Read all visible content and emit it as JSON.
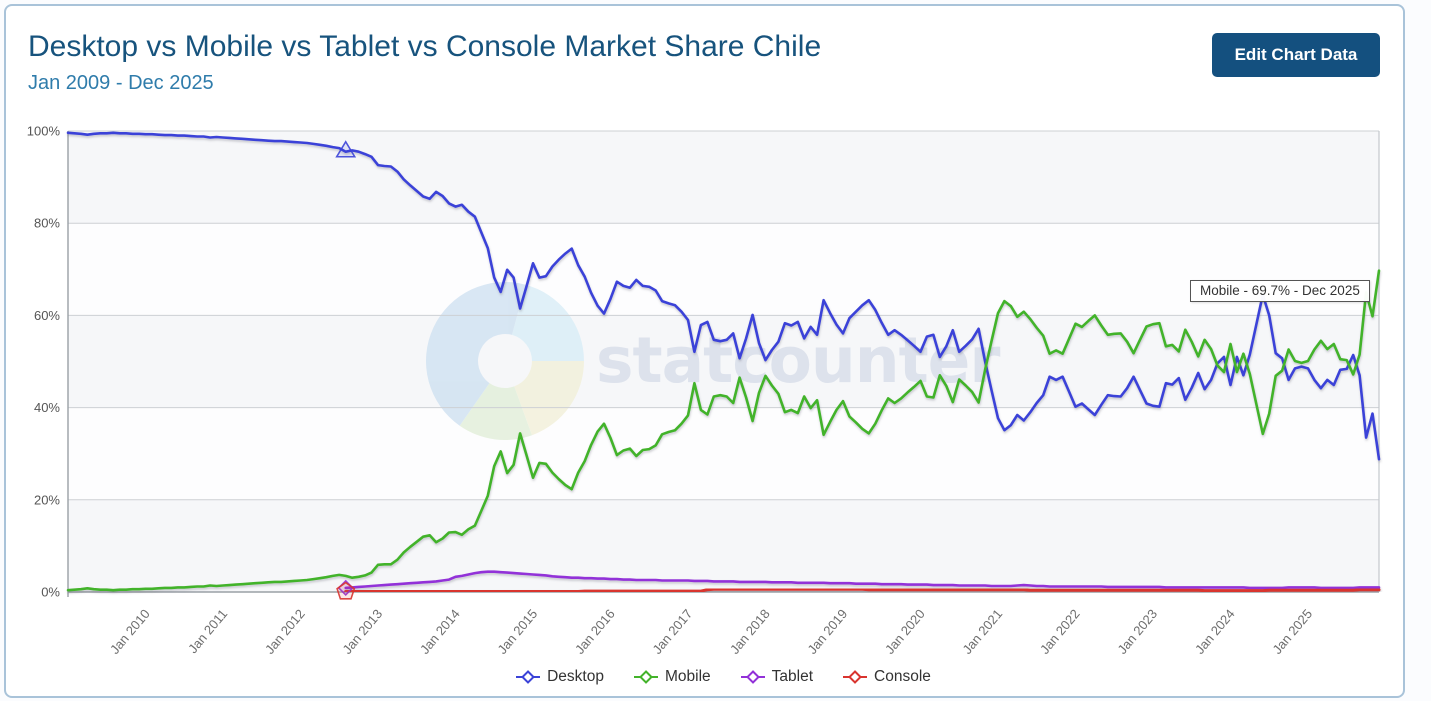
{
  "header": {
    "title": "Desktop vs Mobile vs Tablet vs Console Market Share Chile",
    "subtitle": "Jan 2009 - Dec 2025",
    "edit_button_label": "Edit Chart Data"
  },
  "tooltip": {
    "text": "Mobile - 69.7% - Dec 2025"
  },
  "watermark": {
    "text": "statcounter"
  },
  "legend": [
    {
      "label": "Desktop",
      "color": "#3b43d8"
    },
    {
      "label": "Mobile",
      "color": "#43b32a"
    },
    {
      "label": "Tablet",
      "color": "#9231d8"
    },
    {
      "label": "Console",
      "color": "#d9342f"
    }
  ],
  "chart_data": {
    "type": "line",
    "title": "Desktop vs Mobile vs Tablet vs Console Market Share Chile",
    "period": "Jan 2009 - Dec 2025",
    "x_start": "Jan 2009",
    "x_end": "Dec 2025",
    "points_are": "monthly market share percent",
    "x_tick_labels": [
      "Jan 2010",
      "Jan 2011",
      "Jan 2012",
      "Jan 2013",
      "Jan 2014",
      "Jan 2015",
      "Jan 2016",
      "Jan 2017",
      "Jan 2018",
      "Jan 2019",
      "Jan 2020",
      "Jan 2021",
      "Jan 2022",
      "Jan 2023",
      "Jan 2024",
      "Jan 2025"
    ],
    "x_tick_month_indices": [
      12,
      24,
      36,
      48,
      60,
      72,
      84,
      96,
      108,
      120,
      132,
      144,
      156,
      168,
      180,
      192
    ],
    "y_tick_labels": [
      "0%",
      "20%",
      "40%",
      "60%",
      "80%",
      "100%"
    ],
    "ylim": [
      0,
      100
    ],
    "grid": "horizontal",
    "legend_position": "bottom",
    "series": [
      {
        "name": "Desktop",
        "color": "#3b43d8",
        "values": [
          99.6,
          99.5,
          99.4,
          99.2,
          99.4,
          99.5,
          99.5,
          99.6,
          99.5,
          99.5,
          99.4,
          99.4,
          99.3,
          99.3,
          99.2,
          99.1,
          99.1,
          99.0,
          99.0,
          98.9,
          98.8,
          98.8,
          98.6,
          98.7,
          98.6,
          98.5,
          98.4,
          98.3,
          98.2,
          98.1,
          98.0,
          97.9,
          97.8,
          97.8,
          97.7,
          97.6,
          97.5,
          97.4,
          97.2,
          97.0,
          96.8,
          96.5,
          96.3,
          95.5,
          95.8,
          95.5,
          95.0,
          94.4,
          92.6,
          92.4,
          92.3,
          91.2,
          89.5,
          88.2,
          87.0,
          85.8,
          85.3,
          86.8,
          85.9,
          84.3,
          83.6,
          84.0,
          82.5,
          81.4,
          78.0,
          74.6,
          68.2,
          65.1,
          69.9,
          68.2,
          61.5,
          66.3,
          71.3,
          68.2,
          68.5,
          70.6,
          72.1,
          73.4,
          74.5,
          70.9,
          68.4,
          64.9,
          62.1,
          60.4,
          63.6,
          67.3,
          66.4,
          66.0,
          67.7,
          66.4,
          66.2,
          65.4,
          63.1,
          62.6,
          62.2,
          60.8,
          59.0,
          52.1,
          57.9,
          58.6,
          54.7,
          54.4,
          54.7,
          56.1,
          50.7,
          55.0,
          60.1,
          54.0,
          50.3,
          52.5,
          54.3,
          58.3,
          57.8,
          58.6,
          55.0,
          57.5,
          55.8,
          63.3,
          60.5,
          58.0,
          56.1,
          59.4,
          60.8,
          62.2,
          63.3,
          61.2,
          58.4,
          55.8,
          56.8,
          55.8,
          54.6,
          53.4,
          52.1,
          55.4,
          55.8,
          51.0,
          53.3,
          56.8,
          52.1,
          53.4,
          54.8,
          57.1,
          50.0,
          43.8,
          37.7,
          35.1,
          36.2,
          38.4,
          37.2,
          39.0,
          41.0,
          42.7,
          46.7,
          46.0,
          46.7,
          43.5,
          40.2,
          40.9,
          39.6,
          38.4,
          40.6,
          42.7,
          42.5,
          42.4,
          44.2,
          46.7,
          43.8,
          40.9,
          40.4,
          40.2,
          45.3,
          45.0,
          46.4,
          41.7,
          44.3,
          47.5,
          44.0,
          46.0,
          49.6,
          51.0,
          44.9,
          51.0,
          47.0,
          51.5,
          58.0,
          64.5,
          60.0,
          51.8,
          50.7,
          46.0,
          48.5,
          48.9,
          48.5,
          46.0,
          44.2,
          46.0,
          44.9,
          48.2,
          48.4,
          51.4,
          47.0,
          33.5,
          38.7,
          28.8
        ]
      },
      {
        "name": "Mobile",
        "color": "#43b32a",
        "values": [
          0.4,
          0.5,
          0.6,
          0.8,
          0.6,
          0.5,
          0.5,
          0.4,
          0.5,
          0.5,
          0.6,
          0.6,
          0.7,
          0.7,
          0.8,
          0.9,
          0.9,
          1.0,
          1.0,
          1.1,
          1.2,
          1.2,
          1.4,
          1.3,
          1.4,
          1.5,
          1.6,
          1.7,
          1.8,
          1.9,
          2.0,
          2.1,
          2.2,
          2.2,
          2.3,
          2.4,
          2.5,
          2.6,
          2.8,
          3.0,
          3.2,
          3.5,
          3.7,
          3.5,
          3.1,
          3.3,
          3.6,
          4.2,
          5.9,
          6.0,
          6.0,
          7.0,
          8.6,
          9.8,
          10.9,
          12.0,
          12.3,
          10.8,
          11.6,
          12.9,
          13.0,
          12.4,
          13.6,
          14.4,
          17.6,
          20.9,
          27.3,
          30.5,
          25.8,
          27.6,
          34.4,
          29.7,
          24.8,
          28.0,
          27.8,
          25.9,
          24.5,
          23.2,
          22.3,
          25.9,
          28.4,
          31.9,
          34.8,
          36.5,
          33.4,
          29.7,
          30.7,
          31.1,
          29.5,
          30.8,
          31.0,
          31.8,
          34.2,
          34.7,
          35.1,
          36.5,
          38.3,
          45.3,
          39.5,
          38.5,
          42.4,
          42.7,
          42.4,
          41.0,
          46.5,
          42.2,
          37.1,
          43.2,
          46.9,
          44.8,
          43.0,
          39.0,
          39.5,
          38.8,
          42.4,
          39.9,
          41.6,
          34.1,
          36.9,
          39.5,
          41.4,
          38.1,
          36.8,
          35.4,
          34.4,
          36.5,
          39.4,
          42.0,
          41.0,
          42.0,
          43.3,
          44.5,
          45.8,
          42.4,
          42.2,
          47.0,
          44.7,
          41.2,
          46.1,
          44.8,
          43.4,
          41.1,
          48.2,
          54.4,
          60.5,
          63.1,
          62.0,
          59.7,
          60.8,
          59.2,
          57.3,
          55.6,
          51.7,
          52.4,
          51.7,
          54.9,
          58.2,
          57.5,
          58.8,
          60.0,
          57.8,
          55.8,
          56.0,
          56.1,
          54.3,
          51.8,
          54.7,
          57.6,
          58.1,
          58.3,
          53.3,
          53.6,
          52.2,
          56.9,
          54.3,
          51.1,
          54.7,
          52.7,
          49.1,
          47.7,
          53.8,
          47.7,
          51.7,
          47.3,
          40.8,
          34.3,
          38.7,
          46.9,
          48.0,
          52.6,
          50.1,
          49.7,
          50.1,
          52.6,
          54.5,
          52.7,
          53.8,
          50.5,
          50.3,
          47.2,
          51.5,
          65.0,
          59.8,
          69.7
        ]
      },
      {
        "name": "Tablet",
        "color": "#9231d8",
        "values": [
          null,
          null,
          null,
          null,
          null,
          null,
          null,
          null,
          null,
          null,
          null,
          null,
          null,
          null,
          null,
          null,
          null,
          null,
          null,
          null,
          null,
          null,
          null,
          null,
          null,
          null,
          null,
          null,
          null,
          null,
          null,
          null,
          null,
          null,
          null,
          null,
          null,
          null,
          null,
          null,
          null,
          null,
          null,
          0.9,
          1.0,
          1.1,
          1.2,
          1.3,
          1.4,
          1.5,
          1.6,
          1.7,
          1.8,
          1.9,
          2.0,
          2.1,
          2.2,
          2.3,
          2.5,
          2.7,
          3.3,
          3.5,
          3.8,
          4.1,
          4.3,
          4.4,
          4.4,
          4.3,
          4.2,
          4.1,
          4.0,
          3.9,
          3.8,
          3.7,
          3.6,
          3.4,
          3.3,
          3.2,
          3.1,
          3.1,
          3.0,
          3.0,
          2.9,
          2.9,
          2.8,
          2.8,
          2.7,
          2.7,
          2.6,
          2.6,
          2.6,
          2.6,
          2.5,
          2.5,
          2.5,
          2.5,
          2.5,
          2.4,
          2.4,
          2.4,
          2.3,
          2.3,
          2.3,
          2.3,
          2.2,
          2.2,
          2.2,
          2.2,
          2.2,
          2.1,
          2.1,
          2.1,
          2.1,
          2.0,
          2.0,
          2.0,
          2.0,
          2.0,
          1.9,
          1.9,
          1.9,
          1.9,
          1.8,
          1.8,
          1.8,
          1.8,
          1.7,
          1.7,
          1.7,
          1.7,
          1.6,
          1.6,
          1.6,
          1.6,
          1.5,
          1.5,
          1.5,
          1.5,
          1.4,
          1.4,
          1.4,
          1.4,
          1.4,
          1.3,
          1.3,
          1.3,
          1.3,
          1.4,
          1.5,
          1.4,
          1.3,
          1.3,
          1.2,
          1.2,
          1.2,
          1.2,
          1.2,
          1.2,
          1.2,
          1.2,
          1.2,
          1.1,
          1.1,
          1.1,
          1.1,
          1.1,
          1.1,
          1.1,
          1.1,
          1.1,
          1.0,
          1.0,
          1.0,
          1.0,
          1.0,
          1.0,
          1.0,
          1.0,
          1.0,
          1.0,
          1.0,
          1.0,
          1.0,
          0.9,
          0.9,
          0.9,
          0.9,
          0.9,
          0.9,
          1.0,
          1.0,
          1.0,
          1.0,
          1.0,
          0.9,
          0.9,
          0.9,
          0.9,
          0.9,
          0.9,
          1.0,
          1.0,
          1.0,
          1.0
        ]
      },
      {
        "name": "Console",
        "color": "#d9342f",
        "values": [
          null,
          null,
          null,
          null,
          null,
          null,
          null,
          null,
          null,
          null,
          null,
          null,
          null,
          null,
          null,
          null,
          null,
          null,
          null,
          null,
          null,
          null,
          null,
          null,
          null,
          null,
          null,
          null,
          null,
          null,
          null,
          null,
          null,
          null,
          null,
          null,
          null,
          null,
          null,
          null,
          null,
          null,
          null,
          0.1,
          0.1,
          0.1,
          0.1,
          0.1,
          0.1,
          0.1,
          0.1,
          0.1,
          0.1,
          0.1,
          0.1,
          0.1,
          0.1,
          0.1,
          0.1,
          0.1,
          0.1,
          0.1,
          0.1,
          0.1,
          0.1,
          0.1,
          0.1,
          0.1,
          0.1,
          0.1,
          0.1,
          0.1,
          0.1,
          0.1,
          0.1,
          0.1,
          0.1,
          0.1,
          0.1,
          0.1,
          0.2,
          0.2,
          0.2,
          0.2,
          0.2,
          0.2,
          0.2,
          0.2,
          0.2,
          0.2,
          0.2,
          0.2,
          0.2,
          0.2,
          0.2,
          0.2,
          0.2,
          0.2,
          0.2,
          0.5,
          0.6,
          0.6,
          0.6,
          0.6,
          0.6,
          0.6,
          0.6,
          0.6,
          0.6,
          0.6,
          0.6,
          0.6,
          0.6,
          0.6,
          0.6,
          0.6,
          0.6,
          0.6,
          0.6,
          0.6,
          0.6,
          0.6,
          0.6,
          0.6,
          0.5,
          0.5,
          0.5,
          0.5,
          0.5,
          0.5,
          0.5,
          0.5,
          0.5,
          0.5,
          0.5,
          0.5,
          0.5,
          0.5,
          0.5,
          0.5,
          0.5,
          0.5,
          0.5,
          0.5,
          0.5,
          0.5,
          0.5,
          0.5,
          0.5,
          0.4,
          0.4,
          0.4,
          0.4,
          0.4,
          0.4,
          0.4,
          0.4,
          0.4,
          0.4,
          0.4,
          0.4,
          0.4,
          0.4,
          0.4,
          0.4,
          0.4,
          0.4,
          0.4,
          0.4,
          0.4,
          0.4,
          0.4,
          0.4,
          0.4,
          0.4,
          0.4,
          0.3,
          0.3,
          0.3,
          0.3,
          0.3,
          0.3,
          0.3,
          0.3,
          0.3,
          0.3,
          0.4,
          0.4,
          0.4,
          0.4,
          0.4,
          0.4,
          0.4,
          0.4,
          0.4,
          0.4,
          0.4,
          0.4,
          0.4,
          0.4,
          0.5,
          0.5,
          0.5,
          0.5
        ]
      }
    ],
    "markers": [
      {
        "series": "Desktop",
        "month_index": 43,
        "month": "Aug 2012",
        "value": 95.5,
        "shape": "triangle"
      },
      {
        "series": "Tablet",
        "month_index": 43,
        "month": "Aug 2012",
        "value": 0.9,
        "shape": "diamond"
      },
      {
        "series": "Console",
        "month_index": 43,
        "month": "Aug 2012",
        "value": 0.1,
        "shape": "pentagon"
      }
    ],
    "annotations": [
      {
        "text": "Mobile - 69.7% - Dec 2025",
        "type": "tooltip"
      }
    ]
  }
}
